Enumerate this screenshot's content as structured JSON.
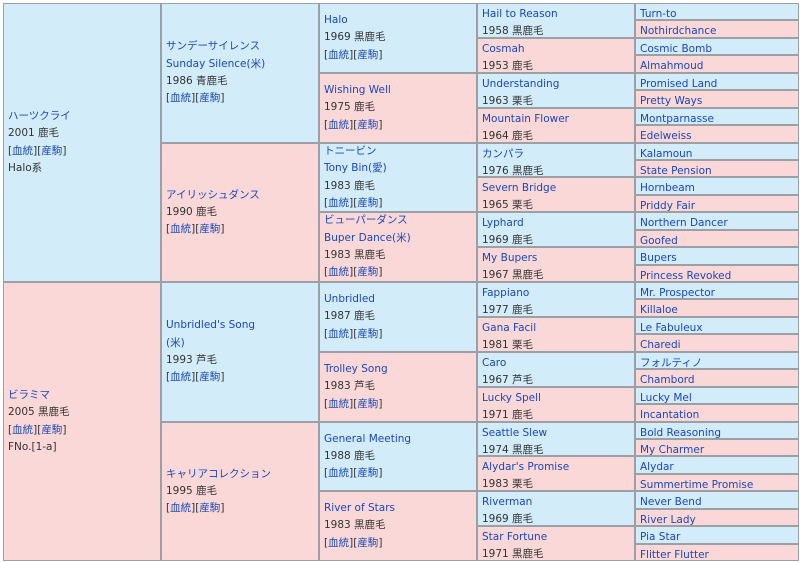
{
  "g1": [
    {
      "name": "ハーツクライ",
      "year": "2001",
      "color": "鹿毛",
      "line1": "Halo系"
    },
    {
      "name": "ビラミマ",
      "year": "2005",
      "color": "黒鹿毛",
      "line1": "FNo.[1-a]"
    }
  ],
  "g2": [
    {
      "name": "サンデーサイレンス",
      "name2": "Sunday Silence(米)",
      "year": "1986",
      "color": "青鹿毛"
    },
    {
      "name": "アイリッシュダンス",
      "year": "1990",
      "color": "鹿毛"
    },
    {
      "name": "Unbridled's Song",
      "name2": "(米)",
      "year": "1993",
      "color": "芦毛"
    },
    {
      "name": "キャリアコレクション",
      "year": "1995",
      "color": "鹿毛"
    }
  ],
  "g3": [
    {
      "name": "Halo",
      "year": "1969",
      "color": "黒鹿毛"
    },
    {
      "name": "Wishing Well",
      "year": "1975",
      "color": "鹿毛"
    },
    {
      "name": "トニービン",
      "name2": "Tony Bin(愛)",
      "year": "1983",
      "color": "鹿毛"
    },
    {
      "name": "ビューパーダンス",
      "name2": "Buper Dance(米)",
      "year": "1983",
      "color": "黒鹿毛"
    },
    {
      "name": "Unbridled",
      "year": "1987",
      "color": "鹿毛"
    },
    {
      "name": "Trolley Song",
      "year": "1983",
      "color": "芦毛"
    },
    {
      "name": "General Meeting",
      "year": "1988",
      "color": "鹿毛"
    },
    {
      "name": "River of Stars",
      "year": "1983",
      "color": "黒鹿毛"
    }
  ],
  "g4": [
    {
      "name": "Hail to Reason",
      "year": "1958",
      "color": "黒鹿毛"
    },
    {
      "name": "Cosmah",
      "year": "1953",
      "color": "鹿毛"
    },
    {
      "name": "Understanding",
      "year": "1963",
      "color": "栗毛"
    },
    {
      "name": "Mountain Flower",
      "year": "1964",
      "color": "鹿毛"
    },
    {
      "name": "カンパラ",
      "year": "1976",
      "color": "黒鹿毛"
    },
    {
      "name": "Severn Bridge",
      "year": "1965",
      "color": "栗毛"
    },
    {
      "name": "Lyphard",
      "year": "1969",
      "color": "鹿毛"
    },
    {
      "name": "My Bupers",
      "year": "1967",
      "color": "黒鹿毛"
    },
    {
      "name": "Fappiano",
      "year": "1977",
      "color": "鹿毛"
    },
    {
      "name": "Gana Facil",
      "year": "1981",
      "color": "栗毛"
    },
    {
      "name": "Caro",
      "year": "1967",
      "color": "芦毛"
    },
    {
      "name": "Lucky Spell",
      "year": "1971",
      "color": "鹿毛"
    },
    {
      "name": "Seattle Slew",
      "year": "1974",
      "color": "黒鹿毛"
    },
    {
      "name": "Alydar's Promise",
      "year": "1983",
      "color": "栗毛"
    },
    {
      "name": "Riverman",
      "year": "1969",
      "color": "鹿毛"
    },
    {
      "name": "Star Fortune",
      "year": "1971",
      "color": "黒鹿毛"
    }
  ],
  "g5": [
    "Turn-to",
    "Nothirdchance",
    "Cosmic Bomb",
    "Almahmoud",
    "Promised Land",
    "Pretty Ways",
    "Montparnasse",
    "Edelweiss",
    "Kalamoun",
    "State Pension",
    "Hornbeam",
    "Priddy Fair",
    "Northern Dancer",
    "Goofed",
    "Bupers",
    "Princess Revoked",
    "Mr. Prospector",
    "Killaloe",
    "Le Fabuleux",
    "Charedi",
    "フォルティノ",
    "Chambord",
    "Lucky Mel",
    "Incantation",
    "Bold Reasoning",
    "My Charmer",
    "Alydar",
    "Summertime Promise",
    "Never Bend",
    "River Lady",
    "Pia Star",
    "Flitter Flutter"
  ],
  "links": {
    "pedigree": "血統",
    "foal": "産駒",
    "open": "[",
    "mid": "][",
    "close": "]"
  },
  "colors": {
    "sire_bg": "#d3ecfa",
    "dam_bg": "#fbd8d8",
    "link": "#1a47b8",
    "border": "#9aa0a6"
  }
}
